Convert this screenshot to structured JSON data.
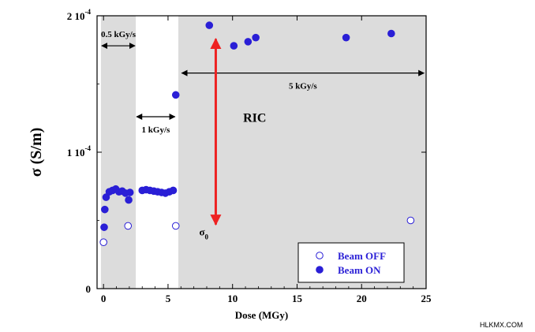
{
  "chart_data": {
    "type": "scatter",
    "xlabel": "Dose (MGy)",
    "ylabel": "σ (S/m)",
    "xlim": [
      -0.5,
      25
    ],
    "ylim": [
      0,
      0.0002
    ],
    "x_ticks": [
      0,
      5,
      10,
      15,
      20,
      25
    ],
    "x_tick_labels": [
      "0",
      "5",
      "10",
      "15",
      "20",
      "25"
    ],
    "y_ticks": [
      0,
      0.0001,
      0.0002
    ],
    "y_tick_labels": [
      {
        "mantissa": "0",
        "exponent": ""
      },
      {
        "mantissa": "1 10",
        "exponent": "-4"
      },
      {
        "mantissa": "2 10",
        "exponent": "-4"
      }
    ],
    "grid": false,
    "legend_position": "bottom-right",
    "series": [
      {
        "name": "Beam OFF",
        "marker": "open-circle",
        "color": "#2a1fd6",
        "points": [
          {
            "x": 0.0,
            "y": 3.4e-05
          },
          {
            "x": 1.9,
            "y": 4.6e-05
          },
          {
            "x": 5.6,
            "y": 4.6e-05
          },
          {
            "x": 23.8,
            "y": 5e-05
          }
        ]
      },
      {
        "name": "Beam ON",
        "marker": "filled-circle",
        "color": "#2a1fd6",
        "points": [
          {
            "x": 0.05,
            "y": 4.5e-05
          },
          {
            "x": 0.1,
            "y": 5.8e-05
          },
          {
            "x": 0.2,
            "y": 6.7e-05
          },
          {
            "x": 0.45,
            "y": 7.1e-05
          },
          {
            "x": 0.7,
            "y": 7.2e-05
          },
          {
            "x": 0.95,
            "y": 7.3e-05
          },
          {
            "x": 1.2,
            "y": 7.1e-05
          },
          {
            "x": 1.45,
            "y": 7.15e-05
          },
          {
            "x": 1.7,
            "y": 7e-05
          },
          {
            "x": 1.95,
            "y": 6.5e-05
          },
          {
            "x": 2.05,
            "y": 7.05e-05
          },
          {
            "x": 3.0,
            "y": 7.2e-05
          },
          {
            "x": 3.3,
            "y": 7.25e-05
          },
          {
            "x": 3.6,
            "y": 7.2e-05
          },
          {
            "x": 3.9,
            "y": 7.15e-05
          },
          {
            "x": 4.2,
            "y": 7.1e-05
          },
          {
            "x": 4.5,
            "y": 7.05e-05
          },
          {
            "x": 4.8,
            "y": 7e-05
          },
          {
            "x": 5.1,
            "y": 7.1e-05
          },
          {
            "x": 5.4,
            "y": 7.2e-05
          },
          {
            "x": 5.6,
            "y": 0.000142
          },
          {
            "x": 8.2,
            "y": 0.000193
          },
          {
            "x": 10.1,
            "y": 0.000178
          },
          {
            "x": 11.2,
            "y": 0.000181
          },
          {
            "x": 11.8,
            "y": 0.000184
          },
          {
            "x": 18.8,
            "y": 0.000184
          },
          {
            "x": 22.3,
            "y": 0.000187
          }
        ]
      }
    ],
    "shaded_regions": [
      {
        "x_from": -0.2,
        "x_to": 2.5,
        "color": "#dcdcdc"
      },
      {
        "x_from": 5.8,
        "x_to": 25,
        "color": "#dcdcdc"
      }
    ],
    "annotations": {
      "rate_05": {
        "text": "0.5 kGy/s",
        "x_from": -0.2,
        "x_to": 2.5,
        "y": 0.000178
      },
      "rate_1": {
        "text": "1 kGy/s",
        "x_from": 2.5,
        "x_to": 5.6,
        "y": 0.000126
      },
      "rate_5": {
        "text": "5 kGy/s",
        "x_from": 6.0,
        "x_to": 24.9,
        "y": 0.000158
      },
      "ric": {
        "text": "RIC",
        "x": 9.9,
        "y": 0.000162,
        "x_arrow": 8.7,
        "y_from": 0.000183,
        "y_to": 4.7e-05,
        "color": "#ee2222"
      },
      "sigma0": {
        "symbol": "σ",
        "subscript": "0"
      }
    },
    "watermark": "HLKMX.COM"
  }
}
